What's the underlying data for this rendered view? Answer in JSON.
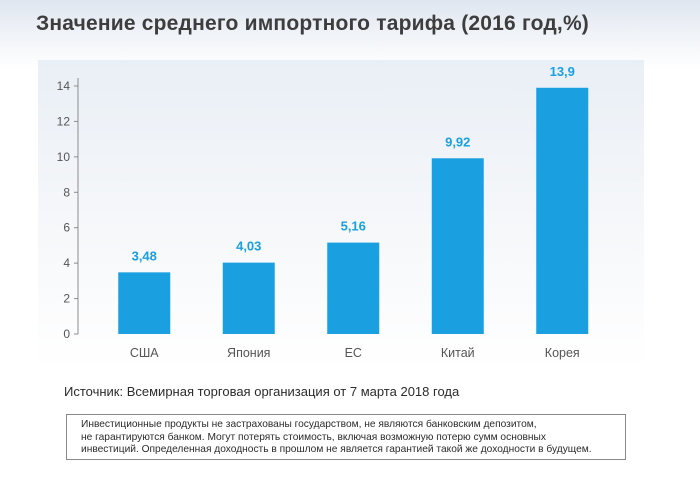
{
  "title": "Значение среднего импортного тарифа (2016 год,%)",
  "source": "Источник: Всемирная торговая организация от 7 марта 2018 года",
  "disclaimer": "Инвестиционные продукты не застрахованы государством, не являются банковским депозитом,\nне гарантируются банком. Могут потерять стоимость, включая возможную потерю сумм основных\nинвестиций. Определенная доходность в прошлом не является гарантией такой же доходности в будущем.",
  "colors": {
    "bar": "#1a9fe0",
    "bar_label": "#1a9fe0",
    "axis_text": "#555555",
    "title": "#3d3d3d"
  },
  "chart_data": {
    "type": "bar",
    "title": "",
    "xlabel": "",
    "ylabel": "",
    "categories": [
      "США",
      "Япония",
      "ЕС",
      "Китай",
      "Корея"
    ],
    "values": [
      3.48,
      4.03,
      5.16,
      9.92,
      13.9
    ],
    "value_labels": [
      "3,48",
      "4,03",
      "5,16",
      "9,92",
      "13,9"
    ],
    "y_ticks": [
      0,
      2,
      4,
      6,
      8,
      10,
      12,
      14
    ],
    "ylim": [
      0,
      14
    ],
    "grid": false,
    "legend": "none"
  }
}
